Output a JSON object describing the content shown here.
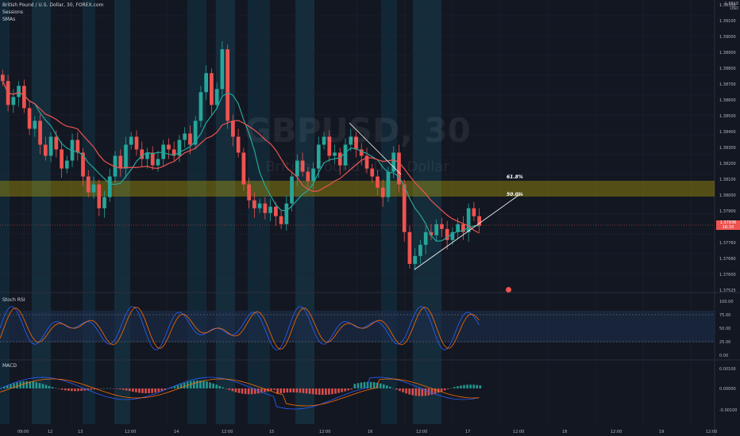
{
  "symbol_title": "British Pound / U.S. Dollar, 30, FOREX.com",
  "indicators": [
    "Sessions",
    "SMAs"
  ],
  "watermark": {
    "symbol": "GBPUSD, 30",
    "name": "British Pound / U.S. Dollar"
  },
  "currency": {
    "top": "1.3810",
    "unit": "USD"
  },
  "price_axis": [
    "1.39300",
    "1.39100",
    "1.39000",
    "1.38900",
    "1.38800",
    "1.38700",
    "1.38600",
    "1.38500",
    "1.38400",
    "1.38300",
    "1.38200",
    "1.38100",
    "1.38000",
    "1.37900",
    "1.37840",
    "1.37760",
    "1.37680",
    "1.37600",
    "1.37525"
  ],
  "current_price": {
    "value": "1.37936",
    "countdown": "16:33"
  },
  "fib": {
    "level_618": "61.8%",
    "level_500": "50.0%"
  },
  "stoch_rsi": {
    "label": "Stoch RSI",
    "levels": [
      "100.00",
      "75.00",
      "50.00",
      "25.00",
      "0.00"
    ]
  },
  "macd": {
    "label": "MACD",
    "levels": [
      "0.00100",
      "0.00000",
      "-0.00100"
    ]
  },
  "time_axis": [
    "09:00",
    "12",
    "13",
    "12:00",
    "14",
    "12:00",
    "15",
    "12:00",
    "16",
    "12:00",
    "17",
    "12:00",
    "18",
    "12:00",
    "19",
    "12:00"
  ],
  "colors": {
    "bull": "#26a69a",
    "bear": "#ef5350",
    "sma_fast": "#26a69a",
    "sma_slow": "#ef5350",
    "fib_zone": "#c8b400",
    "stoch_k": "#2962ff",
    "stoch_d": "#ff6d00"
  },
  "chart_data": {
    "type": "candlestick",
    "timeframe": "30",
    "ylim": [
      1.37525,
      1.3936
    ],
    "close_series": [
      1.3885,
      1.387,
      1.3875,
      1.3882,
      1.3868,
      1.3855,
      1.386,
      1.3845,
      1.3838,
      1.385,
      1.3842,
      1.383,
      1.3835,
      1.3848,
      1.384,
      1.3825,
      1.3815,
      1.382,
      1.3805,
      1.3812,
      1.3825,
      1.3838,
      1.383,
      1.3845,
      1.385,
      1.3842,
      1.3836,
      1.384,
      1.3832,
      1.3836,
      1.3845,
      1.3842,
      1.3838,
      1.3848,
      1.3852,
      1.3845,
      1.386,
      1.3878,
      1.389,
      1.387,
      1.388,
      1.3905,
      1.386,
      1.385,
      1.384,
      1.382,
      1.381,
      1.3805,
      1.3808,
      1.3802,
      1.3806,
      1.38,
      1.3795,
      1.3808,
      1.3825,
      1.3835,
      1.3828,
      1.3822,
      1.383,
      1.3845,
      1.385,
      1.3838,
      1.384,
      1.3832,
      1.3845,
      1.385,
      1.3842,
      1.3838,
      1.383,
      1.3825,
      1.3818,
      1.3812,
      1.3828,
      1.384,
      1.382,
      1.379,
      1.377,
      1.3775,
      1.3782,
      1.379,
      1.3788,
      1.3795,
      1.3792,
      1.3785,
      1.379,
      1.3795,
      1.379,
      1.3805,
      1.38,
      1.3794
    ]
  }
}
